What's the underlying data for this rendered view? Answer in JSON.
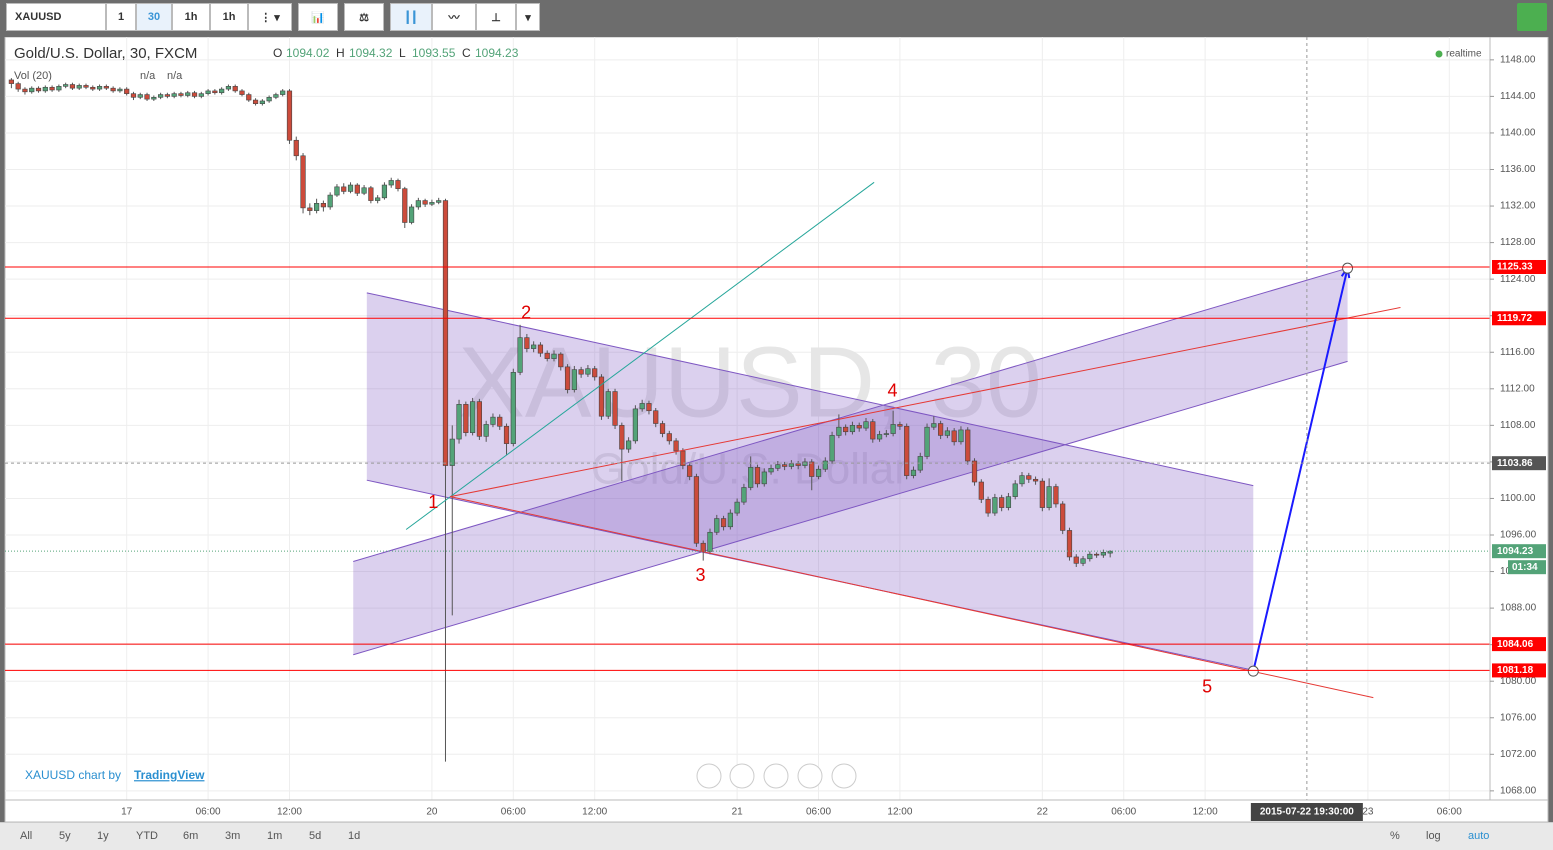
{
  "toolbar": {
    "symbol": "XAUUSD",
    "intervals": [
      "1",
      "30",
      "1h",
      "1h"
    ]
  },
  "chart_data": {
    "type": "candlestick",
    "title": "Gold/U.S. Dollar, 30, FXCM",
    "ohlc_labels": [
      "O",
      "H",
      "L",
      "C"
    ],
    "ohlc_values": [
      1094.02,
      1094.32,
      1093.55,
      1094.23
    ],
    "volume_title": "Vol (20)",
    "volume_values": [
      "n/a",
      "n/a"
    ],
    "status": "realtime",
    "watermark": "XAUUSD, 30",
    "watermark_subtitle": "Gold/U.S. Dollar",
    "up_color": "#53a378",
    "down_color": "#cc4b3b",
    "ohlc": [
      [
        1145.8,
        1146.0,
        1144.9,
        1145.4
      ],
      [
        1145.4,
        1145.6,
        1144.5,
        1144.8
      ],
      [
        1144.8,
        1145.0,
        1144.2,
        1144.5
      ],
      [
        1144.5,
        1145.1,
        1144.3,
        1144.9
      ],
      [
        1144.9,
        1145.1,
        1144.4,
        1144.6
      ],
      [
        1144.6,
        1145.2,
        1144.4,
        1145.0
      ],
      [
        1145.0,
        1145.2,
        1144.5,
        1144.7
      ],
      [
        1144.7,
        1145.3,
        1144.5,
        1145.1
      ],
      [
        1145.1,
        1145.5,
        1144.9,
        1145.3
      ],
      [
        1145.3,
        1145.5,
        1144.7,
        1144.9
      ],
      [
        1144.9,
        1145.4,
        1144.7,
        1145.2
      ],
      [
        1145.2,
        1145.4,
        1144.8,
        1145.0
      ],
      [
        1145.0,
        1145.2,
        1144.6,
        1144.8
      ],
      [
        1144.8,
        1145.3,
        1144.6,
        1145.1
      ],
      [
        1145.1,
        1145.3,
        1144.7,
        1144.9
      ],
      [
        1144.9,
        1145.1,
        1144.4,
        1144.6
      ],
      [
        1144.6,
        1145.0,
        1144.4,
        1144.8
      ],
      [
        1144.8,
        1145.0,
        1144.1,
        1144.3
      ],
      [
        1144.3,
        1144.5,
        1143.6,
        1143.9
      ],
      [
        1143.9,
        1144.4,
        1143.7,
        1144.2
      ],
      [
        1144.2,
        1144.4,
        1143.5,
        1143.7
      ],
      [
        1143.7,
        1144.1,
        1143.5,
        1143.9
      ],
      [
        1143.9,
        1144.4,
        1143.7,
        1144.2
      ],
      [
        1144.2,
        1144.4,
        1143.8,
        1144.0
      ],
      [
        1144.0,
        1144.5,
        1143.8,
        1144.3
      ],
      [
        1144.3,
        1144.5,
        1143.9,
        1144.1
      ],
      [
        1144.1,
        1144.6,
        1143.9,
        1144.4
      ],
      [
        1144.4,
        1144.6,
        1143.8,
        1144.0
      ],
      [
        1144.0,
        1144.5,
        1143.8,
        1144.3
      ],
      [
        1144.3,
        1144.8,
        1144.1,
        1144.6
      ],
      [
        1144.6,
        1144.8,
        1144.2,
        1144.4
      ],
      [
        1144.4,
        1145.0,
        1144.2,
        1144.8
      ],
      [
        1144.8,
        1145.3,
        1144.6,
        1145.1
      ],
      [
        1145.1,
        1145.3,
        1144.4,
        1144.6
      ],
      [
        1144.6,
        1144.8,
        1144.0,
        1144.2
      ],
      [
        1144.2,
        1144.4,
        1143.4,
        1143.6
      ],
      [
        1143.6,
        1143.8,
        1143.0,
        1143.2
      ],
      [
        1143.2,
        1143.7,
        1143.0,
        1143.5
      ],
      [
        1143.5,
        1144.1,
        1143.3,
        1143.9
      ],
      [
        1143.9,
        1144.4,
        1143.7,
        1144.2
      ],
      [
        1144.2,
        1144.8,
        1144.0,
        1144.6
      ],
      [
        1144.6,
        1144.8,
        1138.8,
        1139.2
      ],
      [
        1139.2,
        1139.6,
        1137.0,
        1137.5
      ],
      [
        1137.5,
        1137.8,
        1131.2,
        1131.8
      ],
      [
        1131.8,
        1132.3,
        1131.0,
        1131.5
      ],
      [
        1131.5,
        1132.8,
        1131.2,
        1132.3
      ],
      [
        1132.3,
        1132.6,
        1131.4,
        1131.9
      ],
      [
        1131.9,
        1133.5,
        1131.6,
        1133.2
      ],
      [
        1133.2,
        1134.4,
        1133.0,
        1134.1
      ],
      [
        1134.1,
        1134.5,
        1133.3,
        1133.6
      ],
      [
        1133.6,
        1134.6,
        1133.4,
        1134.3
      ],
      [
        1134.3,
        1134.5,
        1133.1,
        1133.4
      ],
      [
        1133.4,
        1134.3,
        1133.2,
        1134.0
      ],
      [
        1134.0,
        1134.2,
        1132.3,
        1132.6
      ],
      [
        1132.6,
        1133.2,
        1132.3,
        1132.9
      ],
      [
        1132.9,
        1134.6,
        1132.7,
        1134.3
      ],
      [
        1134.3,
        1135.1,
        1134.0,
        1134.8
      ],
      [
        1134.8,
        1135.0,
        1133.6,
        1133.9
      ],
      [
        1133.9,
        1134.1,
        1129.6,
        1130.2
      ],
      [
        1130.2,
        1132.2,
        1130.0,
        1131.9
      ],
      [
        1131.9,
        1132.9,
        1131.6,
        1132.6
      ],
      [
        1132.6,
        1132.8,
        1131.9,
        1132.2
      ],
      [
        1132.2,
        1132.7,
        1132.0,
        1132.4
      ],
      [
        1132.4,
        1132.9,
        1132.2,
        1132.6
      ],
      [
        1132.6,
        1132.8,
        1071.2,
        1103.6
      ],
      [
        1103.6,
        1108.0,
        1087.2,
        1106.5
      ],
      [
        1106.5,
        1110.8,
        1106.0,
        1110.3
      ],
      [
        1110.3,
        1110.6,
        1106.8,
        1107.2
      ],
      [
        1107.2,
        1111.0,
        1106.9,
        1110.6
      ],
      [
        1110.6,
        1110.9,
        1106.4,
        1106.8
      ],
      [
        1106.8,
        1108.5,
        1106.2,
        1108.1
      ],
      [
        1108.1,
        1109.3,
        1107.8,
        1108.9
      ],
      [
        1108.9,
        1109.2,
        1107.5,
        1107.9
      ],
      [
        1107.9,
        1108.2,
        1104.8,
        1106.0
      ],
      [
        1106.0,
        1114.2,
        1105.7,
        1113.8
      ],
      [
        1113.8,
        1119.0,
        1113.5,
        1117.6
      ],
      [
        1117.6,
        1118.0,
        1116.0,
        1116.4
      ],
      [
        1116.4,
        1117.2,
        1116.0,
        1116.8
      ],
      [
        1116.8,
        1117.1,
        1115.5,
        1115.9
      ],
      [
        1115.9,
        1116.2,
        1115.0,
        1115.3
      ],
      [
        1115.3,
        1116.2,
        1115.0,
        1115.8
      ],
      [
        1115.8,
        1116.0,
        1114.0,
        1114.4
      ],
      [
        1114.4,
        1114.7,
        1111.5,
        1111.9
      ],
      [
        1111.9,
        1114.5,
        1111.6,
        1114.1
      ],
      [
        1114.1,
        1114.4,
        1113.2,
        1113.6
      ],
      [
        1113.6,
        1114.6,
        1113.3,
        1114.2
      ],
      [
        1114.2,
        1114.5,
        1112.9,
        1113.3
      ],
      [
        1113.3,
        1113.6,
        1108.6,
        1109.0
      ],
      [
        1109.0,
        1112.0,
        1108.7,
        1111.7
      ],
      [
        1111.7,
        1112.0,
        1107.6,
        1108.0
      ],
      [
        1108.0,
        1108.3,
        1101.9,
        1105.4
      ],
      [
        1105.4,
        1106.7,
        1105.0,
        1106.3
      ],
      [
        1106.3,
        1110.2,
        1106.0,
        1109.8
      ],
      [
        1109.8,
        1110.8,
        1109.5,
        1110.4
      ],
      [
        1110.4,
        1110.7,
        1109.2,
        1109.6
      ],
      [
        1109.6,
        1109.9,
        1107.8,
        1108.2
      ],
      [
        1108.2,
        1108.5,
        1106.7,
        1107.1
      ],
      [
        1107.1,
        1107.4,
        1105.9,
        1106.3
      ],
      [
        1106.3,
        1106.6,
        1104.8,
        1105.2
      ],
      [
        1105.2,
        1105.5,
        1103.2,
        1103.6
      ],
      [
        1103.6,
        1103.9,
        1102.0,
        1102.4
      ],
      [
        1102.4,
        1102.7,
        1094.7,
        1095.1
      ],
      [
        1095.1,
        1095.4,
        1093.2,
        1094.2
      ],
      [
        1094.2,
        1096.7,
        1093.9,
        1096.3
      ],
      [
        1096.3,
        1098.2,
        1096.0,
        1097.8
      ],
      [
        1097.8,
        1098.1,
        1096.5,
        1096.9
      ],
      [
        1096.9,
        1098.8,
        1096.6,
        1098.4
      ],
      [
        1098.4,
        1100.0,
        1098.1,
        1099.6
      ],
      [
        1099.6,
        1101.6,
        1099.3,
        1101.2
      ],
      [
        1101.2,
        1104.6,
        1100.9,
        1103.4
      ],
      [
        1103.4,
        1103.7,
        1101.2,
        1101.6
      ],
      [
        1101.6,
        1103.3,
        1101.3,
        1102.9
      ],
      [
        1102.9,
        1103.7,
        1102.6,
        1103.3
      ],
      [
        1103.3,
        1104.1,
        1103.0,
        1103.7
      ],
      [
        1103.7,
        1104.0,
        1103.1,
        1103.5
      ],
      [
        1103.5,
        1104.2,
        1103.2,
        1103.8
      ],
      [
        1103.8,
        1104.1,
        1103.2,
        1103.6
      ],
      [
        1103.6,
        1104.4,
        1103.3,
        1104.0
      ],
      [
        1104.0,
        1104.3,
        1100.9,
        1102.4
      ],
      [
        1102.4,
        1103.6,
        1102.1,
        1103.2
      ],
      [
        1103.2,
        1104.5,
        1102.9,
        1104.1
      ],
      [
        1104.1,
        1107.3,
        1103.8,
        1106.9
      ],
      [
        1106.9,
        1109.2,
        1106.6,
        1107.8
      ],
      [
        1107.8,
        1108.1,
        1106.9,
        1107.3
      ],
      [
        1107.3,
        1108.4,
        1107.0,
        1108.0
      ],
      [
        1108.0,
        1108.3,
        1107.3,
        1107.7
      ],
      [
        1107.7,
        1108.8,
        1107.4,
        1108.4
      ],
      [
        1108.4,
        1108.7,
        1106.1,
        1106.5
      ],
      [
        1106.5,
        1107.4,
        1106.2,
        1107.0
      ],
      [
        1107.0,
        1107.5,
        1106.7,
        1107.1
      ],
      [
        1107.1,
        1109.6,
        1106.8,
        1108.1
      ],
      [
        1108.1,
        1108.4,
        1107.5,
        1107.9
      ],
      [
        1107.9,
        1108.2,
        1102.1,
        1102.5
      ],
      [
        1102.5,
        1103.5,
        1102.2,
        1103.1
      ],
      [
        1103.1,
        1105.0,
        1102.8,
        1104.6
      ],
      [
        1104.6,
        1108.2,
        1104.3,
        1107.8
      ],
      [
        1107.8,
        1109.0,
        1107.5,
        1108.2
      ],
      [
        1108.2,
        1108.5,
        1106.5,
        1106.9
      ],
      [
        1106.9,
        1107.8,
        1106.6,
        1107.4
      ],
      [
        1107.4,
        1107.7,
        1105.8,
        1106.2
      ],
      [
        1106.2,
        1107.9,
        1105.9,
        1107.5
      ],
      [
        1107.5,
        1107.8,
        1103.7,
        1104.1
      ],
      [
        1104.1,
        1104.4,
        1101.4,
        1101.8
      ],
      [
        1101.8,
        1102.1,
        1099.5,
        1099.9
      ],
      [
        1099.9,
        1100.2,
        1098.0,
        1098.4
      ],
      [
        1098.4,
        1100.5,
        1098.1,
        1100.1
      ],
      [
        1100.1,
        1100.4,
        1098.6,
        1099.0
      ],
      [
        1099.0,
        1100.6,
        1098.7,
        1100.2
      ],
      [
        1100.2,
        1102.0,
        1099.9,
        1101.6
      ],
      [
        1101.6,
        1102.9,
        1101.3,
        1102.5
      ],
      [
        1102.5,
        1102.8,
        1101.7,
        1102.1
      ],
      [
        1102.1,
        1102.4,
        1101.5,
        1101.9
      ],
      [
        1101.9,
        1102.2,
        1098.6,
        1099.0
      ],
      [
        1099.0,
        1102.2,
        1098.7,
        1101.3
      ],
      [
        1101.3,
        1101.6,
        1099.0,
        1099.4
      ],
      [
        1099.4,
        1099.7,
        1096.1,
        1096.5
      ],
      [
        1096.5,
        1096.8,
        1093.2,
        1093.6
      ],
      [
        1093.6,
        1093.9,
        1092.5,
        1092.9
      ],
      [
        1092.9,
        1093.7,
        1092.6,
        1093.4
      ],
      [
        1093.4,
        1094.2,
        1093.1,
        1093.9
      ],
      [
        1093.9,
        1094.1,
        1093.5,
        1093.8
      ],
      [
        1093.8,
        1094.4,
        1093.5,
        1094.1
      ],
      [
        1094.02,
        1094.32,
        1093.55,
        1094.23
      ]
    ],
    "xlim": [
      -0.5,
      218
    ],
    "xticks": [
      {
        "value": 17,
        "label": "17"
      },
      {
        "value": 29,
        "label": "06:00"
      },
      {
        "value": 41,
        "label": "12:00"
      },
      {
        "value": 62,
        "label": "20"
      },
      {
        "value": 74,
        "label": "06:00"
      },
      {
        "value": 86,
        "label": "12:00"
      },
      {
        "value": 107,
        "label": "21"
      },
      {
        "value": 119,
        "label": "06:00"
      },
      {
        "value": 131,
        "label": "12:00"
      },
      {
        "value": 152,
        "label": "22"
      },
      {
        "value": 164,
        "label": "06:00"
      },
      {
        "value": 176,
        "label": "12:00"
      },
      {
        "value": 200,
        "label": "23"
      },
      {
        "value": 212,
        "label": "06:00"
      }
    ],
    "ylim": [
      1067,
      1150.5
    ],
    "yticks": [
      {
        "value": 1068,
        "label": "1068.00"
      },
      {
        "value": 1072,
        "label": "1072.00"
      },
      {
        "value": 1076,
        "label": "1076.00"
      },
      {
        "value": 1080,
        "label": "1080.00"
      },
      {
        "value": 1084,
        "label": "1084.00"
      },
      {
        "value": 1088,
        "label": "1088.00"
      },
      {
        "value": 1092,
        "label": "1092.00"
      },
      {
        "value": 1096,
        "label": "1096.00"
      },
      {
        "value": 1100,
        "label": "1100.00"
      },
      {
        "value": 1104,
        "label": "1104.00"
      },
      {
        "value": 1108,
        "label": "1108.00"
      },
      {
        "value": 1112,
        "label": "1112.00"
      },
      {
        "value": 1116,
        "label": "1116.00"
      },
      {
        "value": 1120,
        "label": "1120.00"
      },
      {
        "value": 1124,
        "label": "1124.00"
      },
      {
        "value": 1128,
        "label": "1128.00"
      },
      {
        "value": 1132,
        "label": "1132.00"
      },
      {
        "value": 1136,
        "label": "1136.00"
      },
      {
        "value": 1140,
        "label": "1140.00"
      },
      {
        "value": 1144,
        "label": "1144.00"
      },
      {
        "value": 1148,
        "label": "1148.00"
      }
    ],
    "grid": true,
    "price_lines": [
      {
        "value": 1125.33,
        "color": "#ff0000"
      },
      {
        "value": 1119.72,
        "color": "#ff0000"
      },
      {
        "value": 1084.06,
        "color": "#ff0000"
      },
      {
        "value": 1081.18,
        "color": "#ff0000"
      }
    ],
    "last_price": {
      "value": 1094.23,
      "countdown": "01:34",
      "color": "#53a378"
    },
    "crosshair": {
      "x": 191,
      "y": 1103.86,
      "x_label": "2015-07-22 19:30:00"
    },
    "drawings": [
      {
        "type": "channel",
        "color": "#7e57c2",
        "points": [
          [
            52.4,
            1122.5
          ],
          [
            183.1,
            1101.4
          ],
          [
            183.1,
            1081.2
          ],
          [
            52.4,
            1102.0
          ]
        ]
      },
      {
        "type": "channel",
        "color": "#7e57c2",
        "points": [
          [
            50.4,
            1093.1
          ],
          [
            197,
            1125.2
          ],
          [
            197,
            1115.0
          ],
          [
            50.4,
            1082.9
          ]
        ]
      },
      {
        "type": "line",
        "color": "#26a69a",
        "points": [
          [
            58.2,
            1096.6
          ],
          [
            127.2,
            1134.6
          ]
        ]
      },
      {
        "type": "line",
        "color": "#e53935",
        "points": [
          [
            64.7,
            1100.2
          ],
          [
            200.8,
            1078.2
          ]
        ]
      },
      {
        "type": "line",
        "color": "#e53935",
        "points": [
          [
            64.7,
            1100.2
          ],
          [
            204.8,
            1120.9
          ]
        ]
      },
      {
        "type": "arrow",
        "color": "#1a1aff",
        "points": [
          [
            183.1,
            1081.1
          ],
          [
            197,
            1125.2
          ]
        ]
      }
    ],
    "annotations": [
      {
        "text": "1",
        "x": 62.2,
        "y": 1099.5
      },
      {
        "text": "2",
        "x": 75.9,
        "y": 1120.2
      },
      {
        "text": "3",
        "x": 101.6,
        "y": 1091.5
      },
      {
        "text": "4",
        "x": 129.9,
        "y": 1111.7
      },
      {
        "text": "5",
        "x": 176.3,
        "y": 1079.3
      }
    ],
    "credit": "XAUUSD chart by",
    "credit_link": "TradingView"
  },
  "bottom_bar": {
    "ranges": [
      "All",
      "5y",
      "1y",
      "YTD",
      "6m",
      "3m",
      "1m",
      "5d",
      "1d"
    ],
    "options": [
      "%",
      "log",
      "auto"
    ]
  }
}
